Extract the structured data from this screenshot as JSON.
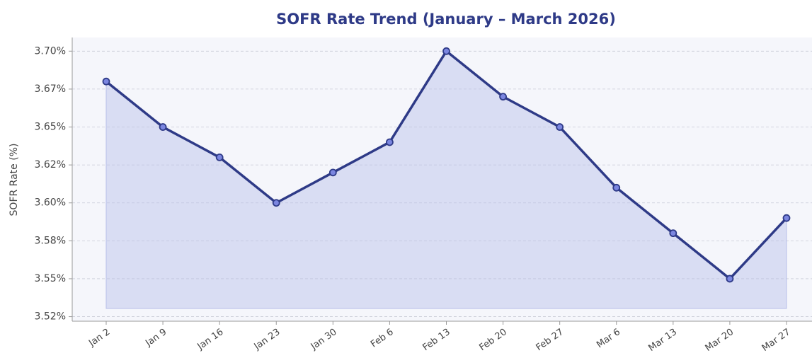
{
  "chart_data": {
    "type": "line",
    "title": "SOFR Rate Trend (January – March 2026)",
    "y_label": "SOFR Rate (%)",
    "categories": [
      "Jan 2",
      "Jan 9",
      "Jan 16",
      "Jan 23",
      "Jan 30",
      "Feb 6",
      "Feb 13",
      "Feb 20",
      "Feb 27",
      "Mar 6",
      "Mar 13",
      "Mar 20",
      "Mar 27"
    ],
    "series": [
      {
        "name": "SOFR",
        "color": "#2e3a87",
        "values": [
          3.68,
          3.65,
          3.63,
          3.6,
          3.62,
          3.64,
          3.7,
          3.67,
          3.65,
          3.61,
          3.58,
          3.55,
          3.59
        ]
      }
    ],
    "ylim": [
      3.522,
      3.709
    ],
    "yticks": [
      {
        "value": 3.525,
        "label": "3.52%"
      },
      {
        "value": 3.55,
        "label": "3.55%"
      },
      {
        "value": 3.575,
        "label": "3.58%"
      },
      {
        "value": 3.6,
        "label": "3.60%"
      },
      {
        "value": 3.625,
        "label": "3.62%"
      },
      {
        "value": 3.65,
        "label": "3.65%"
      },
      {
        "value": 3.675,
        "label": "3.67%"
      },
      {
        "value": 3.7,
        "label": "3.70%"
      }
    ],
    "grid": true
  }
}
